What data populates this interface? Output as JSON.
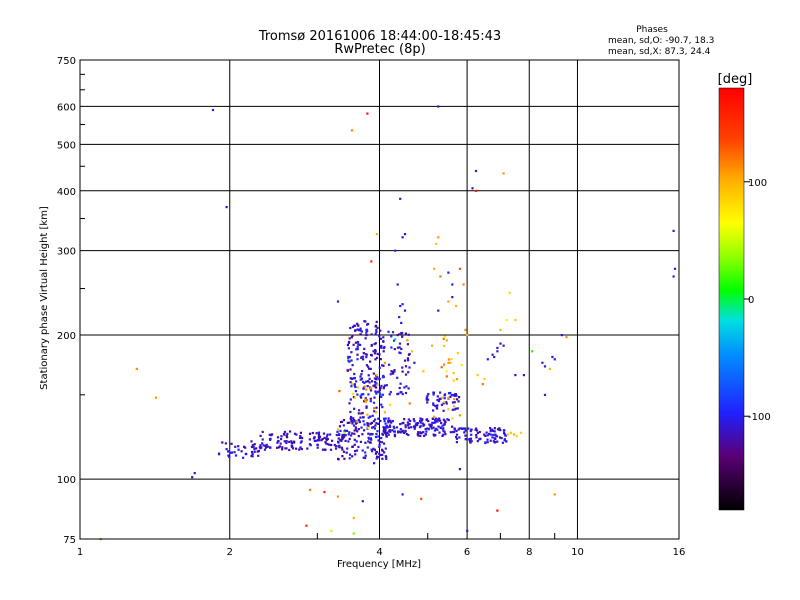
{
  "chart_data": {
    "type": "scatter",
    "title": "Tromsø 20161006 18:44:00-18:45:43",
    "subtitle": "RwPretec (8p)",
    "xlabel": "Frequency [MHz]",
    "ylabel": "Stationary phase Virtual Height [km]",
    "xscale": "log",
    "yscale": "log",
    "xlim": [
      1,
      16
    ],
    "ylim": [
      75,
      750
    ],
    "x_ticks": [
      1,
      2,
      4,
      6,
      8,
      10,
      16
    ],
    "x_tick_labels": [
      "1",
      "2",
      "4",
      "6",
      "8",
      "10",
      "16"
    ],
    "y_ticks": [
      75,
      100,
      200,
      300,
      400,
      500,
      600,
      750
    ],
    "y_tick_labels": [
      "75",
      "100",
      "200",
      "300",
      "400",
      "500",
      "600",
      "750"
    ],
    "grid": true,
    "phase_info": {
      "heading": "Phases",
      "line_o": "mean, sd,O: -90.7, 18.3",
      "line_x": "mean, sd,X:  87.3, 24.4"
    },
    "colorbar": {
      "label": "[deg]",
      "range": [
        -180,
        180
      ],
      "ticks": [
        100,
        0,
        -100
      ],
      "tick_labels": [
        "100",
        "0",
        "-100"
      ]
    },
    "series": [
      {
        "name": "echoes",
        "points": [
          [
            1.85,
            590,
            -105
          ],
          [
            1.97,
            370,
            -110
          ],
          [
            3.52,
            535,
            115
          ],
          [
            3.78,
            580,
            165
          ],
          [
            5.25,
            600,
            -115
          ],
          [
            6.25,
            440,
            -105
          ],
          [
            6.15,
            405,
            -110
          ],
          [
            6.25,
            400,
            160
          ],
          [
            7.1,
            435,
            110
          ],
          [
            15.6,
            330,
            -110
          ],
          [
            15.6,
            265,
            -110
          ],
          [
            15.7,
            275,
            -105
          ],
          [
            3.3,
            235,
            -105
          ],
          [
            3.95,
            325,
            100
          ],
          [
            3.85,
            285,
            150
          ],
          [
            4.4,
            385,
            -110
          ],
          [
            4.45,
            320,
            -105
          ],
          [
            4.5,
            325,
            -110
          ],
          [
            4.3,
            300,
            -100
          ],
          [
            4.35,
            255,
            -105
          ],
          [
            4.4,
            230,
            -110
          ],
          [
            4.45,
            232,
            -100
          ],
          [
            4.5,
            225,
            -115
          ],
          [
            4.42,
            212,
            -110
          ],
          [
            4.38,
            218,
            -105
          ],
          [
            5.25,
            320,
            110
          ],
          [
            5.2,
            310,
            95
          ],
          [
            5.15,
            275,
            100
          ],
          [
            5.3,
            265,
            120
          ],
          [
            5.5,
            270,
            -110
          ],
          [
            5.6,
            255,
            -105
          ],
          [
            5.8,
            275,
            130
          ],
          [
            5.9,
            255,
            115
          ],
          [
            5.6,
            240,
            -110
          ],
          [
            5.5,
            235,
            105
          ],
          [
            5.7,
            230,
            100
          ],
          [
            5.25,
            225,
            -115
          ],
          [
            5.95,
            205,
            110
          ],
          [
            6.0,
            200,
            95
          ],
          [
            7.3,
            245,
            85
          ],
          [
            7.2,
            215,
            60
          ],
          [
            7.5,
            215,
            90
          ],
          [
            7.0,
            205,
            100
          ],
          [
            7.1,
            190,
            -110
          ],
          [
            6.9,
            185,
            -105
          ],
          [
            6.8,
            180,
            -110
          ],
          [
            6.6,
            178,
            -105
          ],
          [
            6.75,
            182,
            -100
          ],
          [
            6.9,
            188,
            -110
          ],
          [
            7.0,
            192,
            -115
          ],
          [
            8.5,
            175,
            -105
          ],
          [
            8.6,
            172,
            -110
          ],
          [
            8.8,
            170,
            95
          ],
          [
            9.3,
            200,
            -110
          ],
          [
            9.5,
            198,
            110
          ],
          [
            8.1,
            185,
            15
          ],
          [
            8.9,
            180,
            -105
          ],
          [
            9.0,
            178,
            -100
          ],
          [
            7.8,
            165,
            -110
          ],
          [
            7.5,
            165,
            -120
          ],
          [
            8.6,
            150,
            -105
          ],
          [
            1.3,
            170,
            115
          ],
          [
            1.42,
            148,
            110
          ],
          [
            1.7,
            103,
            -110
          ],
          [
            1.68,
            101,
            -115
          ],
          [
            2.85,
            80,
            150
          ],
          [
            2.9,
            95,
            120
          ],
          [
            3.1,
            94,
            160
          ],
          [
            3.3,
            92,
            110
          ],
          [
            3.55,
            83,
            100
          ],
          [
            3.2,
            78,
            50
          ],
          [
            3.55,
            77,
            30
          ],
          [
            3.7,
            90,
            -110
          ],
          [
            4.45,
            93,
            -100
          ],
          [
            4.85,
            91,
            130
          ],
          [
            5.8,
            105,
            -110
          ],
          [
            6.0,
            78,
            -110
          ],
          [
            6.9,
            86,
            170
          ],
          [
            9.0,
            93,
            110
          ],
          [
            1.1,
            75,
            115
          ],
          [
            3.0,
            118,
            -95
          ],
          [
            3.1,
            122,
            -110
          ],
          [
            3.3,
            127,
            100
          ],
          [
            3.4,
            125,
            40
          ],
          [
            3.6,
            132,
            110
          ],
          [
            3.8,
            128,
            60
          ],
          [
            4.1,
            138,
            100
          ],
          [
            4.2,
            143,
            80
          ],
          [
            4.6,
            144,
            120
          ],
          [
            5.15,
            135,
            110
          ],
          [
            5.5,
            140,
            90
          ],
          [
            5.6,
            134,
            80
          ],
          [
            5.65,
            142,
            100
          ],
          [
            5.8,
            136,
            110
          ],
          [
            5.45,
            168,
            70
          ],
          [
            5.55,
            175,
            100
          ],
          [
            4.9,
            168,
            95
          ],
          [
            4.7,
            175,
            -115
          ],
          [
            6.3,
            165,
            90
          ],
          [
            6.5,
            162,
            85
          ],
          [
            6.45,
            158,
            120
          ],
          [
            7.25,
            124,
            90
          ],
          [
            7.35,
            125,
            95
          ],
          [
            7.45,
            124,
            100
          ],
          [
            7.55,
            123,
            80
          ],
          [
            7.7,
            125,
            85
          ],
          [
            5.4,
            145,
            90
          ],
          [
            5.35,
            148,
            95
          ],
          [
            5.5,
            148,
            100
          ],
          [
            5.65,
            147,
            110
          ],
          [
            4.0,
            118,
            -105
          ],
          [
            3.95,
            114,
            -110
          ],
          [
            3.9,
            108,
            -100
          ],
          [
            3.75,
            112,
            -115
          ],
          [
            3.85,
            155,
            105
          ],
          [
            3.95,
            165,
            100
          ],
          [
            4.1,
            175,
            110
          ],
          [
            4.55,
            195,
            110
          ],
          [
            4.65,
            185,
            95
          ],
          [
            5.1,
            190,
            100
          ],
          [
            4.35,
            200,
            -130
          ],
          [
            4.3,
            196,
            -20
          ]
        ],
        "clusters": [
          {
            "x": [
              1.9,
              2.3
            ],
            "y": [
              110,
              120
            ],
            "phase": [
              -125,
              -95
            ],
            "n": 40
          },
          {
            "x": [
              2.3,
              3.4
            ],
            "y": [
              115,
              126
            ],
            "phase": [
              -130,
              -95
            ],
            "n": 130
          },
          {
            "x": [
              3.3,
              4.2
            ],
            "y": [
              110,
              135
            ],
            "phase": [
              -130,
              -90
            ],
            "n": 140
          },
          {
            "x": [
              3.45,
              4.05
            ],
            "y": [
              130,
              215
            ],
            "phase": [
              -130,
              -90
            ],
            "n": 200
          },
          {
            "x": [
              4.0,
              4.6
            ],
            "y": [
              150,
              205
            ],
            "phase": [
              -125,
              -90
            ],
            "n": 70
          },
          {
            "x": [
              4.05,
              5.6
            ],
            "y": [
              123,
              134
            ],
            "phase": [
              -125,
              -95
            ],
            "n": 150
          },
          {
            "x": [
              5.6,
              7.2
            ],
            "y": [
              119,
              128
            ],
            "phase": [
              -125,
              -95
            ],
            "n": 90
          },
          {
            "x": [
              4.9,
              5.8
            ],
            "y": [
              138,
              152
            ],
            "phase": [
              -120,
              -95
            ],
            "n": 50
          },
          {
            "x": [
              3.3,
              4.0
            ],
            "y": [
              136,
              160
            ],
            "phase": [
              80,
              130
            ],
            "n": 15
          },
          {
            "x": [
              5.3,
              5.9
            ],
            "y": [
              160,
              200
            ],
            "phase": [
              70,
              130
            ],
            "n": 15
          }
        ]
      }
    ]
  }
}
